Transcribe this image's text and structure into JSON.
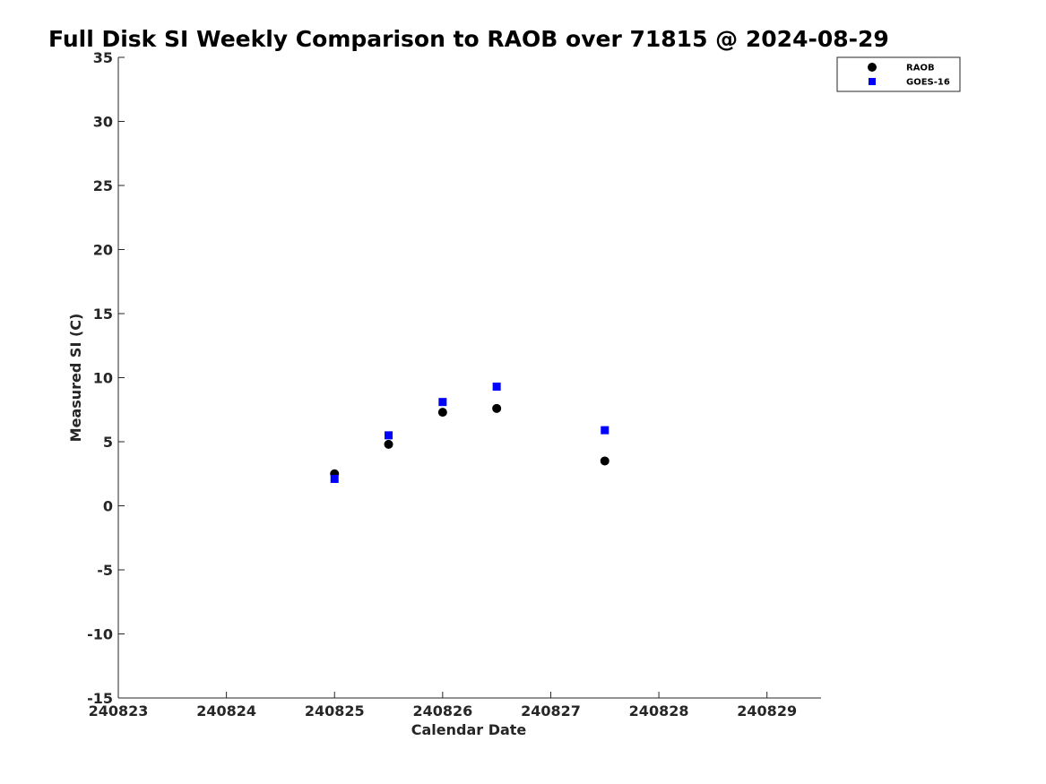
{
  "chart_data": {
    "type": "scatter",
    "title": "Full Disk SI Weekly Comparison to RAOB over 71815 @ 2024-08-29",
    "xlabel": "Calendar Date",
    "ylabel": "Measured SI (C)",
    "xlim": [
      240823,
      240829.5
    ],
    "ylim": [
      -15,
      35
    ],
    "x_ticks": [
      240823,
      240824,
      240825,
      240826,
      240827,
      240828,
      240829
    ],
    "x_tick_labels": [
      "240823",
      "240824",
      "240825",
      "240826",
      "240827",
      "240828",
      "240829"
    ],
    "y_ticks": [
      -15,
      -10,
      -5,
      0,
      5,
      10,
      15,
      20,
      25,
      30,
      35
    ],
    "y_tick_labels": [
      "-15",
      "-10",
      "-5",
      "0",
      "5",
      "10",
      "15",
      "20",
      "25",
      "30",
      "35"
    ],
    "grid": false,
    "legend_position": "top-right",
    "series": [
      {
        "name": "RAOB",
        "marker": "circle",
        "color": "#000000",
        "x": [
          240825,
          240825.5,
          240826,
          240826.5,
          240827.5
        ],
        "y": [
          2.5,
          4.8,
          7.3,
          7.6,
          3.5
        ]
      },
      {
        "name": "GOES-16",
        "marker": "square",
        "color": "#0000ff",
        "x": [
          240825,
          240825.5,
          240826,
          240826.5,
          240827.5
        ],
        "y": [
          2.1,
          5.5,
          8.1,
          9.3,
          5.9
        ]
      }
    ]
  }
}
